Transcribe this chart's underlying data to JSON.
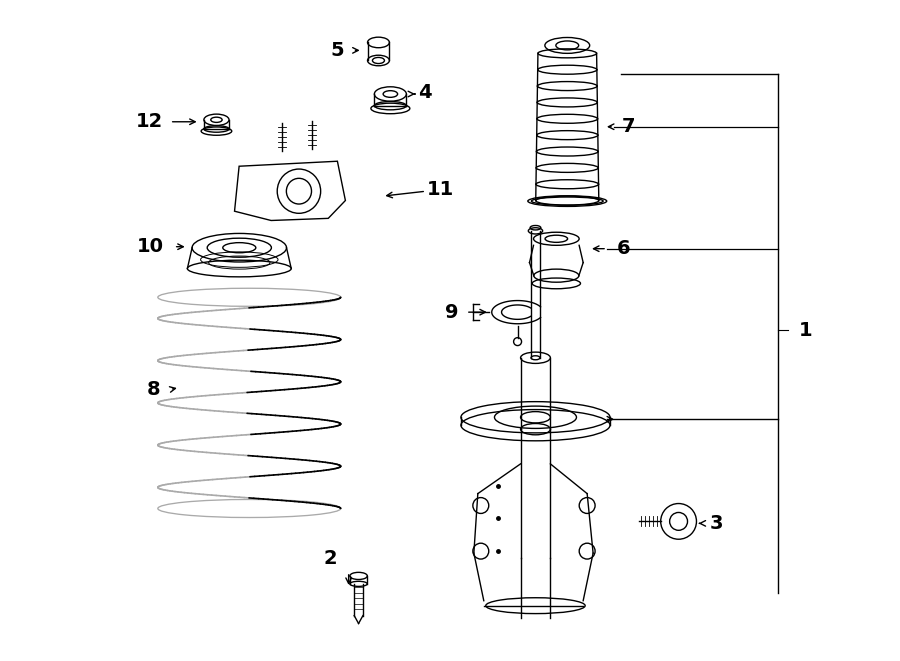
{
  "bg_color": "#ffffff",
  "lc": "#000000",
  "fig_width": 9.0,
  "fig_height": 6.61,
  "dpi": 100
}
